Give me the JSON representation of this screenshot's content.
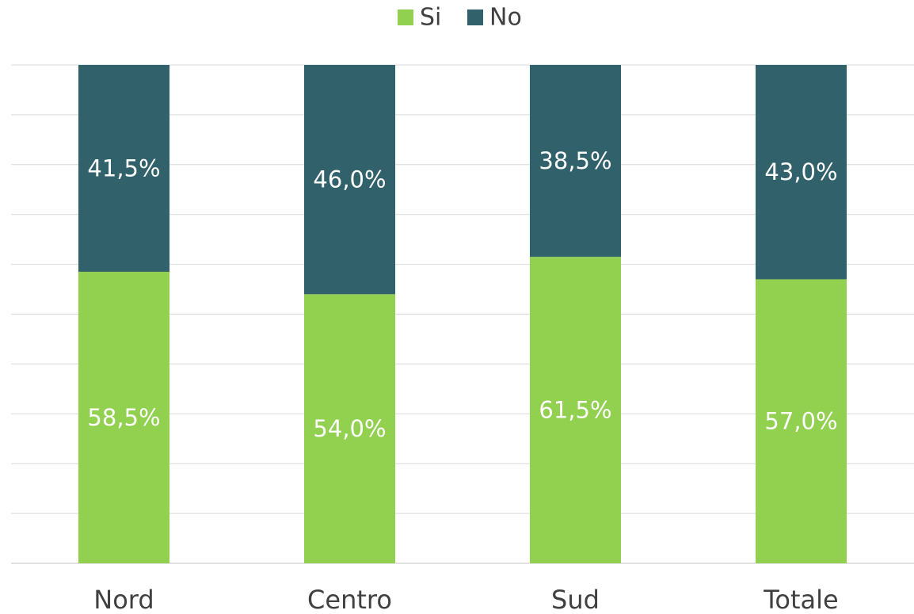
{
  "chart_data": {
    "type": "bar",
    "stacked": true,
    "percent": true,
    "categories": [
      "Nord",
      "Centro",
      "Sud",
      "Totale"
    ],
    "series": [
      {
        "name": "Si",
        "color": "#92d050",
        "values": [
          58.5,
          54.0,
          61.5,
          57.0
        ],
        "labels": [
          "58,5%",
          "54,0%",
          "61,5%",
          "57,0%"
        ]
      },
      {
        "name": "No",
        "color": "#31616a",
        "values": [
          41.5,
          46.0,
          38.5,
          43.0
        ],
        "labels": [
          "41,5%",
          "46,0%",
          "38,5%",
          "43,0%"
        ]
      }
    ],
    "ylim": [
      0,
      100
    ],
    "grid": true,
    "legend_position": "top-center",
    "title": "",
    "xlabel": "",
    "ylabel": ""
  }
}
